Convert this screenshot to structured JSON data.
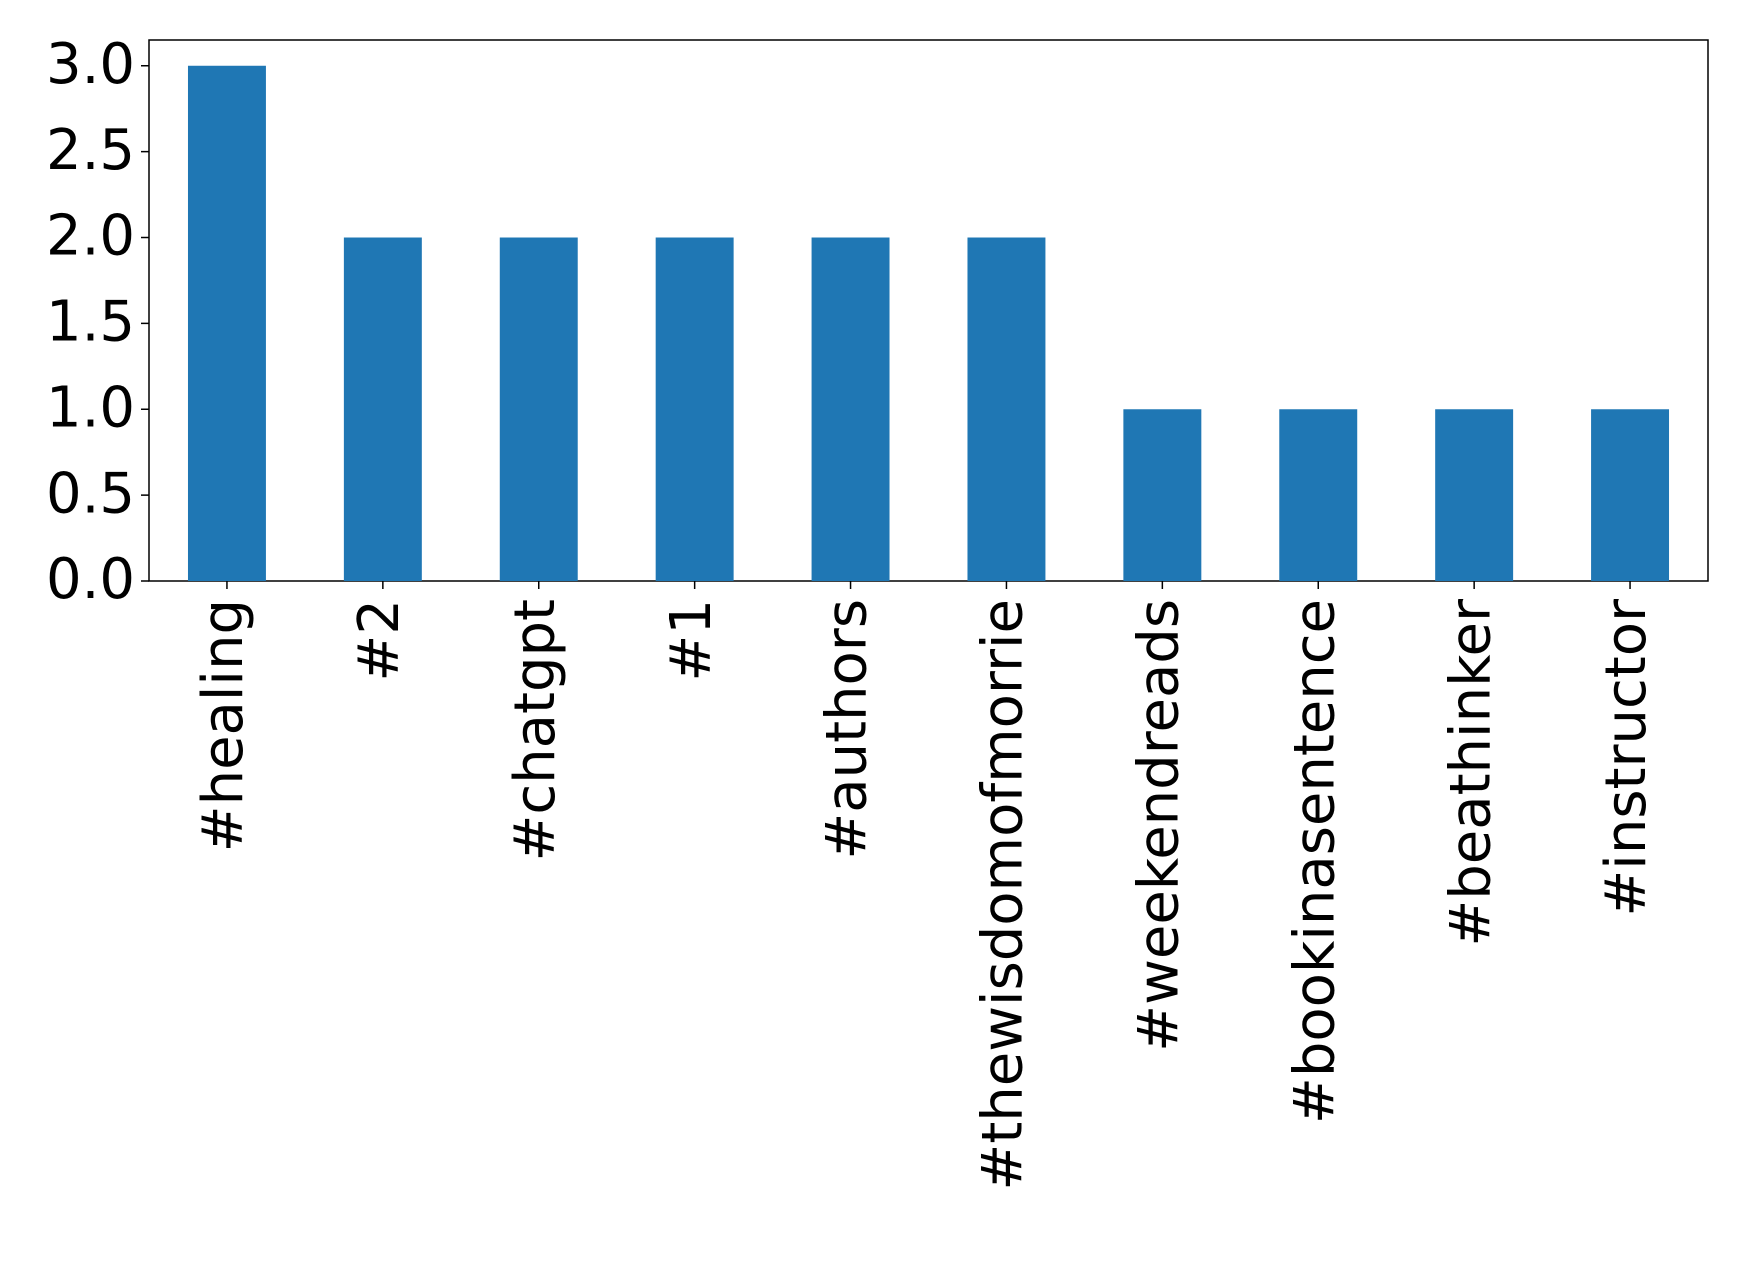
{
  "chart_data": {
    "type": "bar",
    "categories": [
      "#healing",
      "#2",
      "#chatgpt",
      "#1",
      "#authors",
      "#thewisdomofmorrie",
      "#weekendreads",
      "#bookinasentence",
      "#beathinker",
      "#instructor"
    ],
    "values": [
      3,
      2,
      2,
      2,
      2,
      2,
      1,
      1,
      1,
      1
    ],
    "color": "#1f77b4",
    "ylim": [
      0,
      3.15
    ],
    "yticks": [
      {
        "value": 0,
        "label": "0.0"
      },
      {
        "value": 0.5,
        "label": "0.5"
      },
      {
        "value": 1,
        "label": "1.0"
      },
      {
        "value": 1.5,
        "label": "1.5"
      },
      {
        "value": 2,
        "label": "2.0"
      },
      {
        "value": 2.5,
        "label": "2.5"
      },
      {
        "value": 3,
        "label": "3.0"
      }
    ],
    "grid": false
  }
}
